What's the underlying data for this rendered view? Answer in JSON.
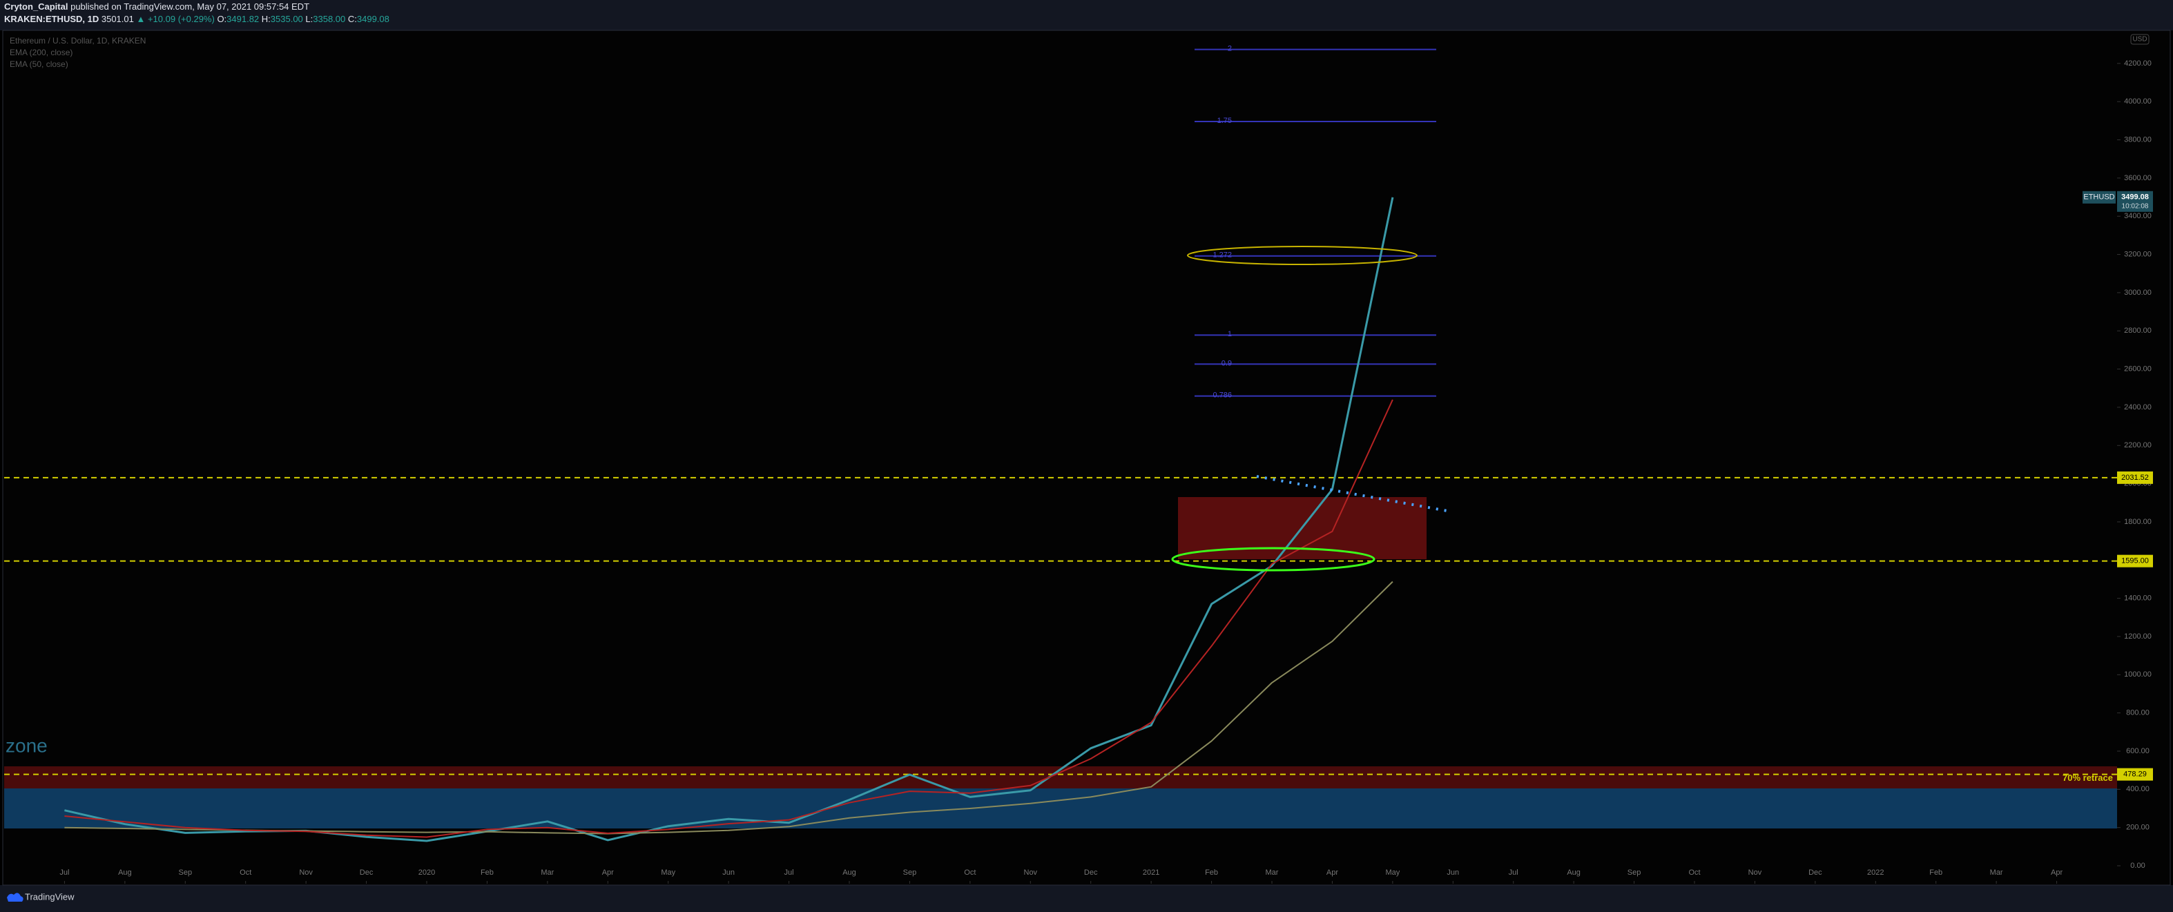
{
  "header": {
    "author": "Cryton_Capital",
    "published": "published on TradingView.com, May 07, 2021 09:57:54 EDT",
    "symbol": "KRAKEN:ETHUSD, 1D",
    "last": "3501.01",
    "change": "▲ +10.09 (+0.29%)",
    "ohlc": [
      {
        "label": "O:",
        "value": "3491.82"
      },
      {
        "label": "H:",
        "value": "3535.00"
      },
      {
        "label": "L:",
        "value": "3358.00"
      },
      {
        "label": "C:",
        "value": "3499.08"
      }
    ]
  },
  "footer": {
    "brand": "TradingView"
  },
  "chart_data": {
    "type": "line",
    "currency": "USD",
    "zone_label": "zone",
    "x": [
      "2019-07",
      "2019-08",
      "2019-09",
      "2019-10",
      "2019-11",
      "2019-12",
      "2020-01",
      "2020-02",
      "2020-03",
      "2020-04",
      "2020-05",
      "2020-06",
      "2020-07",
      "2020-08",
      "2020-09",
      "2020-10",
      "2020-11",
      "2020-12",
      "2021-01",
      "2021-02",
      "2021-03",
      "2021-04",
      "2021-05"
    ],
    "series": [
      {
        "name": "Ethereum / U.S. Dollar, 1D, KRAKEN",
        "color": "#3a9aa8",
        "width": 3,
        "values": [
          290,
          218,
          172,
          180,
          183,
          151,
          130,
          180,
          232,
          134,
          207,
          245,
          225,
          345,
          477,
          360,
          395,
          615,
          735,
          1370,
          1570,
          1970,
          3499.08
        ]
      },
      {
        "name": "EMA (200, close)",
        "color": "#8a8a5c",
        "width": 2,
        "values": [
          200,
          195,
          190,
          186,
          182,
          178,
          175,
          178,
          172,
          168,
          175,
          185,
          205,
          250,
          280,
          300,
          326,
          360,
          413,
          653,
          958,
          1175,
          1487
        ]
      },
      {
        "name": "EMA (50, close)",
        "color": "#b52323",
        "width": 2,
        "values": [
          260,
          230,
          200,
          185,
          180,
          160,
          150,
          190,
          200,
          170,
          190,
          220,
          240,
          330,
          390,
          380,
          420,
          560,
          750,
          1150,
          1580,
          1750,
          2440
        ]
      }
    ],
    "xlim": [
      "2019-06",
      "2022-05"
    ],
    "xticks": [
      {
        "value": "2019-07",
        "label": "Jul"
      },
      {
        "value": "2019-08",
        "label": "Aug"
      },
      {
        "value": "2019-09",
        "label": "Sep"
      },
      {
        "value": "2019-10",
        "label": "Oct"
      },
      {
        "value": "2019-11",
        "label": "Nov"
      },
      {
        "value": "2019-12",
        "label": "Dec"
      },
      {
        "value": "2020-01",
        "label": "2020"
      },
      {
        "value": "2020-02",
        "label": "Feb"
      },
      {
        "value": "2020-03",
        "label": "Mar"
      },
      {
        "value": "2020-04",
        "label": "Apr"
      },
      {
        "value": "2020-05",
        "label": "May"
      },
      {
        "value": "2020-06",
        "label": "Jun"
      },
      {
        "value": "2020-07",
        "label": "Jul"
      },
      {
        "value": "2020-08",
        "label": "Aug"
      },
      {
        "value": "2020-09",
        "label": "Sep"
      },
      {
        "value": "2020-10",
        "label": "Oct"
      },
      {
        "value": "2020-11",
        "label": "Nov"
      },
      {
        "value": "2020-12",
        "label": "Dec"
      },
      {
        "value": "2021-01",
        "label": "2021"
      },
      {
        "value": "2021-02",
        "label": "Feb"
      },
      {
        "value": "2021-03",
        "label": "Mar"
      },
      {
        "value": "2021-04",
        "label": "Apr"
      },
      {
        "value": "2021-05",
        "label": "May"
      },
      {
        "value": "2021-06",
        "label": "Jun"
      },
      {
        "value": "2021-07",
        "label": "Jul"
      },
      {
        "value": "2021-08",
        "label": "Aug"
      },
      {
        "value": "2021-09",
        "label": "Sep"
      },
      {
        "value": "2021-10",
        "label": "Oct"
      },
      {
        "value": "2021-11",
        "label": "Nov"
      },
      {
        "value": "2021-12",
        "label": "Dec"
      },
      {
        "value": "2022-01",
        "label": "2022"
      },
      {
        "value": "2022-02",
        "label": "Feb"
      },
      {
        "value": "2022-03",
        "label": "Mar"
      },
      {
        "value": "2022-04",
        "label": "Apr"
      }
    ],
    "ylim": [
      -94,
      4373
    ],
    "yticks": [
      {
        "value": 0,
        "label": "0.00"
      },
      {
        "value": 200,
        "label": "200.00"
      },
      {
        "value": 400,
        "label": "400.00"
      },
      {
        "value": 600,
        "label": "600.00"
      },
      {
        "value": 800,
        "label": "800.00"
      },
      {
        "value": 1000,
        "label": "1000.00"
      },
      {
        "value": 1200,
        "label": "1200.00"
      },
      {
        "value": 1400,
        "label": "1400.00"
      },
      {
        "value": 1600,
        "label": "1600.00"
      },
      {
        "value": 1800,
        "label": "1800.00"
      },
      {
        "value": 2000,
        "label": "2000.00"
      },
      {
        "value": 2200,
        "label": "2200.00"
      },
      {
        "value": 2400,
        "label": "2400.00"
      },
      {
        "value": 2600,
        "label": "2600.00"
      },
      {
        "value": 2800,
        "label": "2800.00"
      },
      {
        "value": 3000,
        "label": "3000.00"
      },
      {
        "value": 3200,
        "label": "3200.00"
      },
      {
        "value": 3400,
        "label": "3400.00"
      },
      {
        "value": 3600,
        "label": "3600.00"
      },
      {
        "value": 3800,
        "label": "3800.00"
      },
      {
        "value": 4000,
        "label": "4000.00"
      },
      {
        "value": 4200,
        "label": "4200.00"
      }
    ],
    "levels": [
      {
        "value": 2031.52,
        "label": "2031.52",
        "color": "#d4d000"
      },
      {
        "value": 1595,
        "label": "1595.00",
        "color": "#d4d000"
      },
      {
        "value": 478.29,
        "label": "478.29",
        "color": "#d4d000",
        "note": "70% retrace"
      }
    ],
    "fib_levels": [
      {
        "ratio": 2,
        "price": 4273
      },
      {
        "ratio": 1.75,
        "price": 3896
      },
      {
        "ratio": 1.272,
        "price": 3192
      },
      {
        "ratio": 1,
        "price": 2778
      },
      {
        "ratio": 0.9,
        "price": 2626
      },
      {
        "ratio": 0.786,
        "price": 2459
      }
    ],
    "last_price": {
      "symbol": "ETHUSD",
      "value": 3499.08,
      "countdown": "10:02:08"
    }
  }
}
